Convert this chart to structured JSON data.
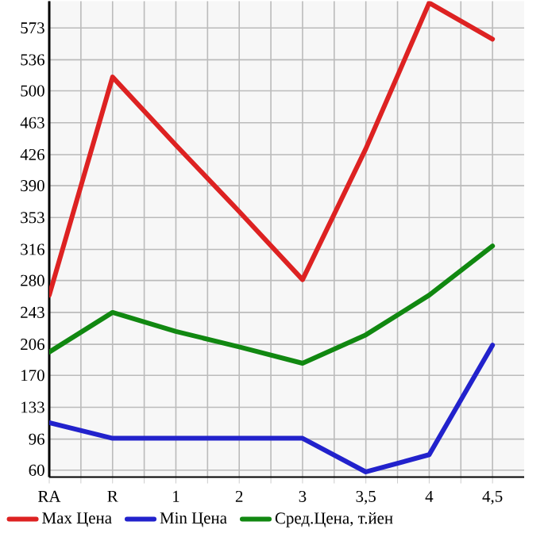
{
  "chart_data": {
    "type": "line",
    "categories": [
      "RA",
      "R",
      "1",
      "2",
      "3",
      "3,5",
      "4",
      "4,5"
    ],
    "series": [
      {
        "name": "Max Цена",
        "color": "#dd2222",
        "values": [
          263,
          516,
          437,
          360,
          281,
          433,
          602,
          560
        ]
      },
      {
        "name": "Min Цена",
        "color": "#2222cc",
        "values": [
          115,
          97,
          97,
          97,
          97,
          58,
          78,
          205
        ]
      },
      {
        "name": "Сред.Цена, т.йен",
        "color": "#118811",
        "values": [
          197,
          243,
          221,
          203,
          184,
          217,
          263,
          320
        ]
      }
    ],
    "ylim": [
      52,
      604
    ],
    "yticks": [
      60,
      96,
      133,
      170,
      206,
      243,
      280,
      316,
      353,
      390,
      426,
      463,
      500,
      536,
      573
    ],
    "grid": true,
    "legend": "bottom",
    "marker": "none",
    "line_style": "solid"
  }
}
